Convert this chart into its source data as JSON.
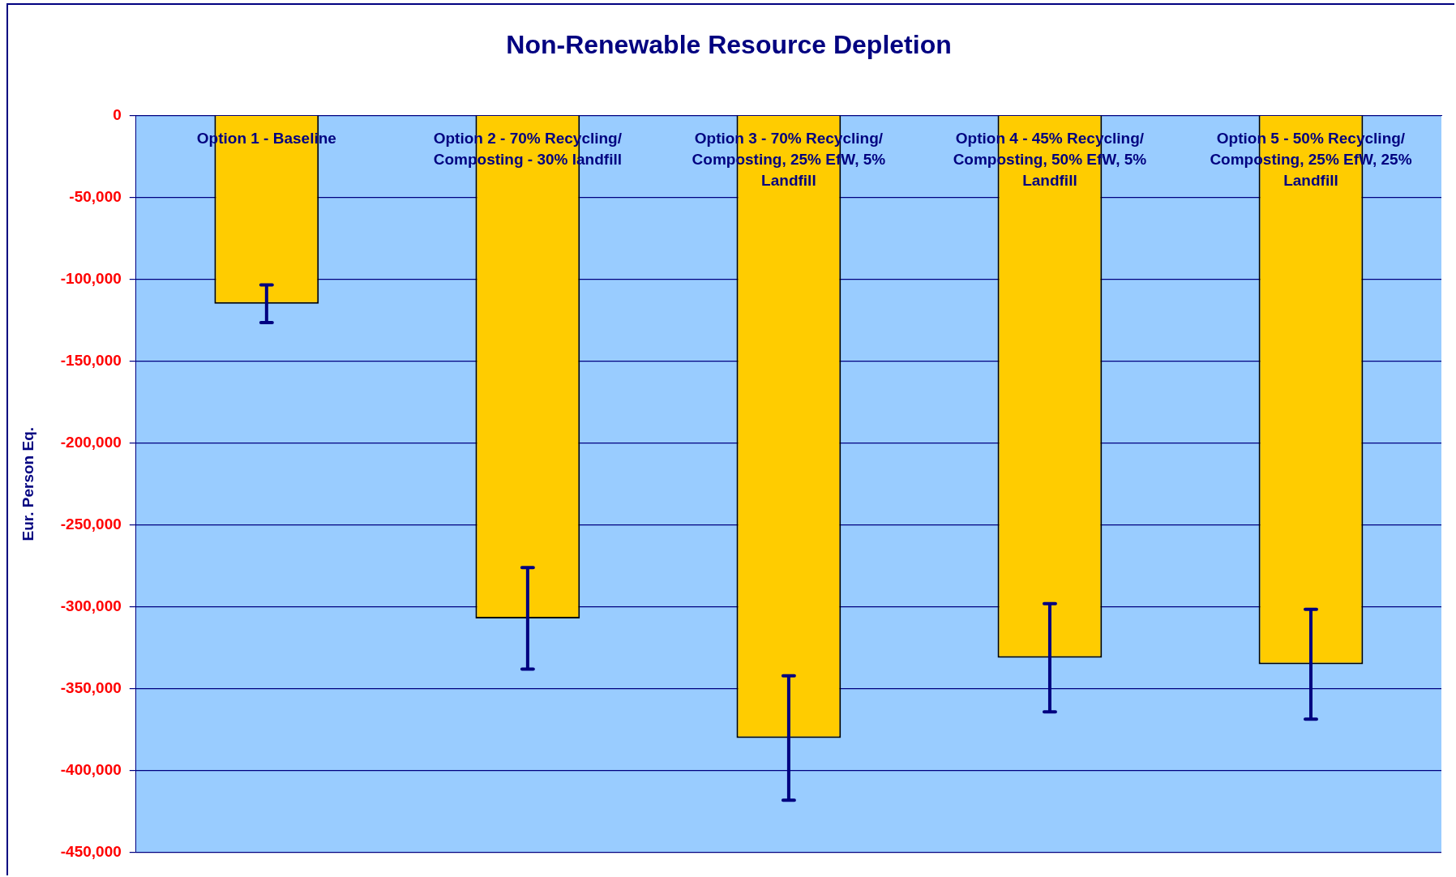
{
  "chart_data": {
    "type": "bar",
    "title": "Non-Renewable Resource Depletion",
    "ylabel": "Eur. Person Eq.",
    "categories": [
      "Option 1 - Baseline",
      "Option 2 - 70% Recycling/ Composting - 30% landfill",
      "Option 3 - 70% Recycling/ Composting, 25% EfW, 5% Landfill",
      "Option 4 - 45% Recycling/ Composting, 50% EfW, 5% Landfill",
      "Option 5 - 50% Recycling/ Composting, 25% EfW, 25% Landfill"
    ],
    "values": [
      -115000,
      -307000,
      -380000,
      -331000,
      -335000
    ],
    "errors": [
      11500,
      31000,
      38000,
      33000,
      33500
    ],
    "color": "#ffcc00",
    "ylim": [
      -450000,
      0
    ],
    "yticks": [
      {
        "value": -450000,
        "label": "-450,000"
      },
      {
        "value": -400000,
        "label": "-400,000"
      },
      {
        "value": -350000,
        "label": "-350,000"
      },
      {
        "value": -300000,
        "label": "-300,000"
      },
      {
        "value": -250000,
        "label": "-250,000"
      },
      {
        "value": -200000,
        "label": "-200,000"
      },
      {
        "value": -150000,
        "label": "-150,000"
      },
      {
        "value": -100000,
        "label": "-100,000"
      },
      {
        "value": -50000,
        "label": "-50,000"
      },
      0
    ],
    "grid": "y",
    "legend": false
  }
}
